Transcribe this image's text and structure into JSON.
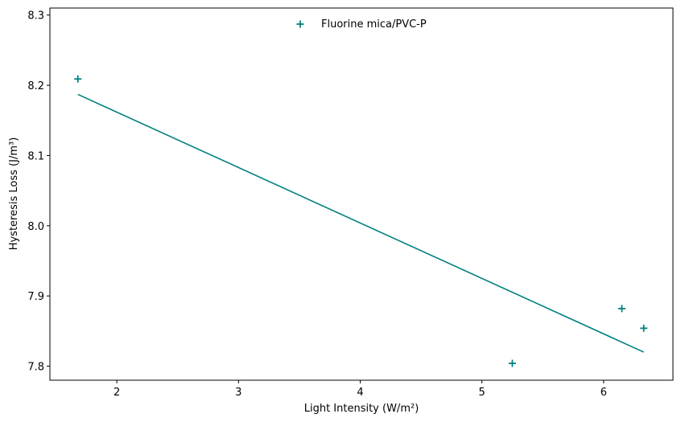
{
  "chart_data": {
    "type": "scatter",
    "title": "",
    "xlabel": "Light Intensity (W/m²)",
    "ylabel": "Hysteresis Loss (J/m³)",
    "xlim": [
      1.45,
      6.57
    ],
    "ylim": [
      7.78,
      8.31
    ],
    "x_ticks": [
      2,
      3,
      4,
      5,
      6
    ],
    "y_ticks": [
      7.8,
      7.9,
      8.0,
      8.1,
      8.2,
      8.3
    ],
    "x_tick_labels": [
      "2",
      "3",
      "4",
      "5",
      "6"
    ],
    "y_tick_labels": [
      "7.8",
      "7.9",
      "8.0",
      "8.1",
      "8.2",
      "8.3"
    ],
    "grid": false,
    "legend_position": "top-center",
    "series": [
      {
        "name": "Fluorine mica/PVC-P",
        "marker": "plus",
        "color": "#008080",
        "points": [
          {
            "x": 1.68,
            "y": 8.209
          },
          {
            "x": 5.25,
            "y": 7.804
          },
          {
            "x": 6.15,
            "y": 7.882
          },
          {
            "x": 6.33,
            "y": 7.854
          }
        ]
      }
    ],
    "fit_line": {
      "color": "#008080",
      "points": [
        {
          "x": 1.68,
          "y": 8.187
        },
        {
          "x": 6.33,
          "y": 7.82
        }
      ]
    }
  }
}
